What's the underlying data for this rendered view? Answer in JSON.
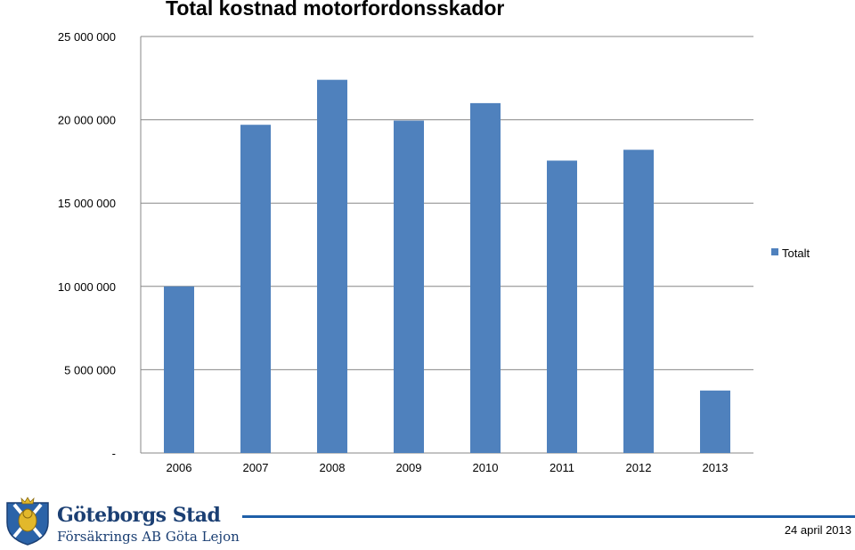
{
  "chart_data": {
    "type": "bar",
    "title": "Total kostnad motorfordonsskador",
    "categories": [
      "2006",
      "2007",
      "2008",
      "2009",
      "2010",
      "2011",
      "2012",
      "2013"
    ],
    "series": [
      {
        "name": "Totalt",
        "values": [
          10000000,
          19700000,
          22400000,
          19950000,
          21000000,
          17550000,
          18200000,
          3750000
        ]
      }
    ],
    "ylim": [
      0,
      25000000
    ],
    "yticks": [
      0,
      5000000,
      10000000,
      15000000,
      20000000,
      25000000
    ],
    "ytick_labels": [
      "-",
      "5 000 000",
      "10 000 000",
      "15 000 000",
      "20 000 000",
      "25 000 000"
    ],
    "grid": true,
    "legend_position": "right",
    "color": "#4f81bd"
  },
  "footer": {
    "brand_line1": "Göteborgs Stad",
    "brand_line2": "Försäkrings AB Göta Lejon",
    "date": "24 april 2013",
    "logo_icon": "goteborg-coat-of-arms-icon",
    "accent_color": "#1f5fa8"
  }
}
